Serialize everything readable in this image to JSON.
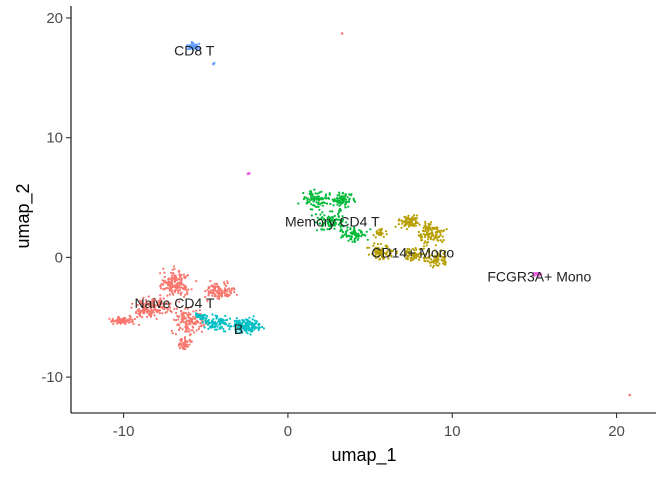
{
  "chart_data": {
    "type": "scatter",
    "title": "",
    "xlabel": "umap_1",
    "ylabel": "umap_2",
    "xlim": [
      -13.2,
      22.4
    ],
    "ylim": [
      -13.0,
      21.0
    ],
    "x_ticks": [
      -10,
      0,
      10,
      20
    ],
    "y_ticks": [
      -10,
      0,
      10,
      20
    ],
    "grid": false,
    "legend": "none",
    "clusters": [
      {
        "name": "Naive CD4 T",
        "color": "#F8766D",
        "label_pos": [
          -6.9,
          -3.8
        ],
        "blobs": [
          {
            "cx": -6.8,
            "cy": -2.3,
            "sx": 0.9,
            "sy": 1.1,
            "n": 160
          },
          {
            "cx": -8.2,
            "cy": -4.2,
            "sx": 1.2,
            "sy": 0.8,
            "n": 160
          },
          {
            "cx": -10.0,
            "cy": -5.3,
            "sx": 0.9,
            "sy": 0.3,
            "n": 70
          },
          {
            "cx": -6.0,
            "cy": -5.3,
            "sx": 0.9,
            "sy": 1.0,
            "n": 130
          },
          {
            "cx": -6.3,
            "cy": -7.2,
            "sx": 0.4,
            "sy": 0.6,
            "n": 45
          },
          {
            "cx": -4.2,
            "cy": -2.8,
            "sx": 1.0,
            "sy": 0.7,
            "n": 110
          }
        ]
      },
      {
        "name": "Memory CD4 T",
        "color": "#00BA38",
        "label_pos": [
          2.7,
          3.0
        ],
        "blobs": [
          {
            "cx": 1.6,
            "cy": 4.9,
            "sx": 0.8,
            "sy": 0.7,
            "n": 80
          },
          {
            "cx": 3.2,
            "cy": 4.8,
            "sx": 0.8,
            "sy": 0.6,
            "n": 80
          },
          {
            "cx": 2.6,
            "cy": 3.0,
            "sx": 1.0,
            "sy": 0.8,
            "n": 90
          },
          {
            "cx": 4.0,
            "cy": 1.9,
            "sx": 0.9,
            "sy": 0.6,
            "n": 70
          }
        ]
      },
      {
        "name": "CD14+ Mono",
        "color": "#B79F00",
        "label_pos": [
          7.6,
          0.4
        ],
        "blobs": [
          {
            "cx": 7.3,
            "cy": 3.0,
            "sx": 0.7,
            "sy": 0.5,
            "n": 80
          },
          {
            "cx": 8.7,
            "cy": 2.0,
            "sx": 0.8,
            "sy": 0.9,
            "n": 110
          },
          {
            "cx": 9.0,
            "cy": -0.1,
            "sx": 0.7,
            "sy": 0.7,
            "n": 80
          },
          {
            "cx": 7.6,
            "cy": 0.2,
            "sx": 0.6,
            "sy": 0.6,
            "n": 60
          },
          {
            "cx": 5.8,
            "cy": 0.4,
            "sx": 0.8,
            "sy": 0.7,
            "n": 80
          },
          {
            "cx": 5.6,
            "cy": 2.0,
            "sx": 0.4,
            "sy": 0.4,
            "n": 25
          }
        ]
      },
      {
        "name": "B",
        "color": "#00BFC4",
        "label_pos": [
          -3.0,
          -6.0
        ],
        "blobs": [
          {
            "cx": -2.5,
            "cy": -5.7,
            "sx": 0.8,
            "sy": 0.6,
            "n": 140
          },
          {
            "cx": -4.2,
            "cy": -5.5,
            "sx": 0.8,
            "sy": 0.6,
            "n": 100
          },
          {
            "cx": -5.3,
            "cy": -4.9,
            "sx": 0.4,
            "sy": 0.3,
            "n": 30
          }
        ]
      },
      {
        "name": "CD8 T",
        "color": "#619CFF",
        "label_pos": [
          -5.7,
          17.3
        ],
        "blobs": [
          {
            "cx": -5.8,
            "cy": 17.6,
            "sx": 0.4,
            "sy": 0.3,
            "n": 60
          },
          {
            "cx": -4.5,
            "cy": 16.2,
            "sx": 0.08,
            "sy": 0.08,
            "n": 4
          }
        ]
      },
      {
        "name": "FCGR3A+ Mono",
        "color": "#F564E3",
        "label_pos": [
          15.3,
          -1.6
        ],
        "blobs": [
          {
            "cx": 15.2,
            "cy": -1.4,
            "sx": 0.25,
            "sy": 0.15,
            "n": 22
          },
          {
            "cx": -2.4,
            "cy": 7.0,
            "sx": 0.08,
            "sy": 0.1,
            "n": 8
          }
        ]
      }
    ],
    "outliers": [
      {
        "x": 3.3,
        "y": 18.7,
        "color": "#F8766D"
      },
      {
        "x": 20.8,
        "y": -11.5,
        "color": "#F8766D"
      }
    ]
  }
}
